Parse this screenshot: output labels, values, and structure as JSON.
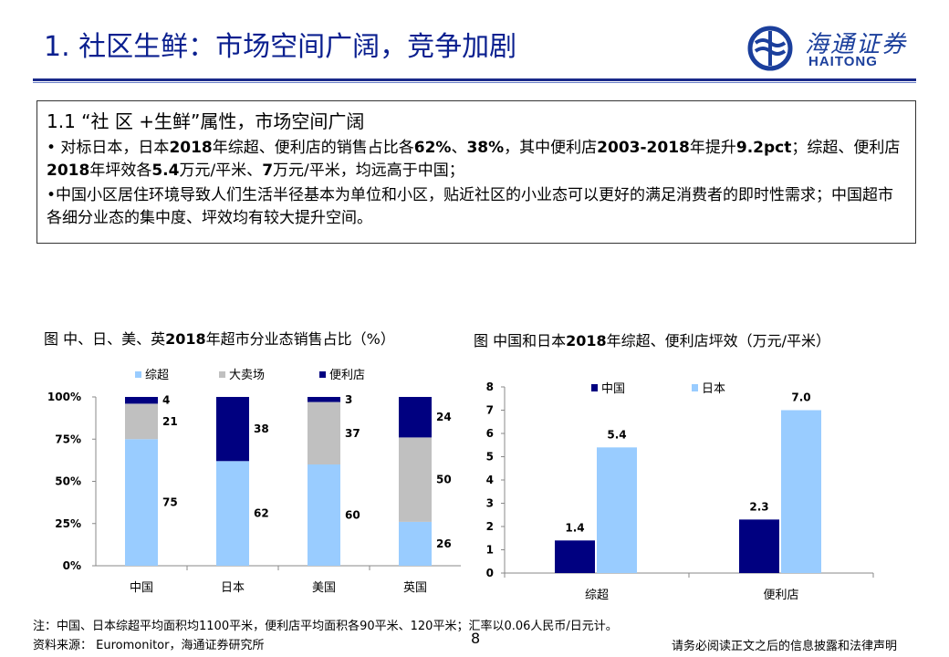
{
  "header": {
    "title": "1. 社区生鲜：市场空间广阔，竞争加剧",
    "logo_cn": "海通证券",
    "logo_en": "HAITONG"
  },
  "box": {
    "heading": "1.1 “社 区 +生鲜”属性，市场空间广阔",
    "bullet1": [
      {
        "t": "•  对标日本，日本",
        "b": false
      },
      {
        "t": "2018",
        "b": true
      },
      {
        "t": "年综超、便利店的销售占比各",
        "b": false
      },
      {
        "t": "62%",
        "b": true
      },
      {
        "t": "、",
        "b": false
      },
      {
        "t": "38%",
        "b": true
      },
      {
        "t": "，其中便利店",
        "b": false
      },
      {
        "t": "2003-2018",
        "b": true
      },
      {
        "t": "年提升",
        "b": false
      },
      {
        "t": "9.2pct",
        "b": true
      },
      {
        "t": "；综超、便利店",
        "b": false
      },
      {
        "t": "2018",
        "b": true
      },
      {
        "t": "年坪效各",
        "b": false
      },
      {
        "t": "5.4",
        "b": true
      },
      {
        "t": "万元/平米、",
        "b": false
      },
      {
        "t": "7",
        "b": true
      },
      {
        "t": "万元/平米，均远高于中国；",
        "b": false
      }
    ],
    "bullet2": "•中国小区居住环境导致人们生活半径基本为单位和小区，贴近社区的小业态可以更好的满足消费者的即时性需求；中国超市各细分业态的集中度、坪效均有较大提升空间。"
  },
  "chart1_title": [
    {
      "t": "图 中、日、美、英",
      "b": false
    },
    {
      "t": "2018",
      "b": true
    },
    {
      "t": "年超市分业态销售占比（%）",
      "b": false
    }
  ],
  "chart2_title": [
    {
      "t": "图 中国和日本",
      "b": false
    },
    {
      "t": "2018",
      "b": true
    },
    {
      "t": "年综超、便利店坪效（万元/平米）",
      "b": false
    }
  ],
  "chart_data": [
    {
      "type": "bar",
      "stacked": true,
      "categories": [
        "中国",
        "日本",
        "美国",
        "英国"
      ],
      "series": [
        {
          "name": "综超",
          "color": "#99ccff",
          "values": [
            75,
            62,
            60,
            26
          ]
        },
        {
          "name": "大卖场",
          "color": "#c0c0c0",
          "values": [
            21,
            0,
            37,
            50
          ]
        },
        {
          "name": "便利店",
          "color": "#000080",
          "values": [
            4,
            38,
            3,
            24
          ]
        }
      ],
      "data_labels": [
        [
          "75",
          "21",
          "4"
        ],
        [
          "62",
          "",
          "38"
        ],
        [
          "60",
          "37",
          "3"
        ],
        [
          "26",
          "50",
          "24"
        ]
      ],
      "yticks": [
        "0%",
        "25%",
        "50%",
        "75%",
        "100%"
      ],
      "ylim": [
        0,
        100
      ],
      "legend_position": "top"
    },
    {
      "type": "bar",
      "categories": [
        "综超",
        "便利店"
      ],
      "series": [
        {
          "name": "中国",
          "color": "#000080",
          "values": [
            1.4,
            2.3
          ]
        },
        {
          "name": "日本",
          "color": "#99ccff",
          "values": [
            5.4,
            7.0
          ]
        }
      ],
      "data_labels": [
        [
          "1.4",
          "5.4"
        ],
        [
          "2.3",
          "7.0"
        ]
      ],
      "yticks": [
        "0",
        "1",
        "2",
        "3",
        "4",
        "5",
        "6",
        "7",
        "8"
      ],
      "ylim": [
        0,
        8
      ],
      "legend_position": "top"
    }
  ],
  "footer": {
    "note": "注：中国、日本综超平均面积均1100平米，便利店平均面积各90平米、120平米；汇率以0.06人民币/日元计。",
    "source": "资料来源：  Euromonitor，海通证券研究所",
    "page": "8",
    "disclaimer": "请务必阅读正文之后的信息披露和法律声明"
  }
}
